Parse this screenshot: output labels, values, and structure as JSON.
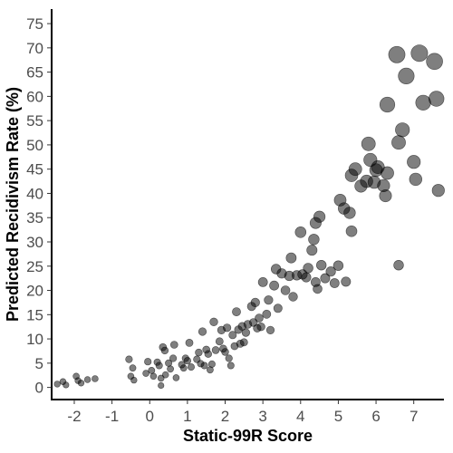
{
  "chart_data": {
    "type": "scatter",
    "title": "",
    "xlabel": "Static-99R Score",
    "ylabel": "Predicted Recidivism Rate (%)",
    "xlim": [
      -2.6,
      7.8
    ],
    "ylim": [
      -2.5,
      78
    ],
    "x_ticks": [
      -2,
      -1,
      0,
      1,
      2,
      3,
      4,
      5,
      6,
      7
    ],
    "x_tick_labels": [
      "-2",
      "-1",
      "0",
      "1",
      "2",
      "3",
      "4",
      "5",
      "6",
      "7"
    ],
    "y_ticks": [
      0,
      5,
      10,
      15,
      20,
      25,
      30,
      35,
      40,
      45,
      50,
      55,
      60,
      65,
      70,
      75
    ],
    "y_tick_labels": [
      "0",
      "5",
      "10",
      "15",
      "20",
      "25",
      "30",
      "35",
      "40",
      "45",
      "50",
      "55",
      "60",
      "65",
      "70",
      "75"
    ],
    "grid": false,
    "legend": "none",
    "point_color": "#000000",
    "point_opacity": 0.5,
    "size_encodes": "predicted rate (larger points at higher values)",
    "points": [
      {
        "x": -2.45,
        "y": 0.7
      },
      {
        "x": -2.3,
        "y": 1.2
      },
      {
        "x": -2.22,
        "y": 0.5
      },
      {
        "x": -1.95,
        "y": 2.3
      },
      {
        "x": -1.9,
        "y": 1.4
      },
      {
        "x": -1.82,
        "y": 0.9
      },
      {
        "x": -1.65,
        "y": 1.6
      },
      {
        "x": -1.45,
        "y": 1.8
      },
      {
        "x": -0.55,
        "y": 5.8
      },
      {
        "x": -0.5,
        "y": 2.3
      },
      {
        "x": -0.45,
        "y": 4.0
      },
      {
        "x": -0.42,
        "y": 1.5
      },
      {
        "x": -0.1,
        "y": 2.9
      },
      {
        "x": -0.05,
        "y": 5.3
      },
      {
        "x": 0.05,
        "y": 3.5
      },
      {
        "x": 0.1,
        "y": 2.3
      },
      {
        "x": 0.2,
        "y": 5.2
      },
      {
        "x": 0.25,
        "y": 4.5
      },
      {
        "x": 0.3,
        "y": 1.9
      },
      {
        "x": 0.3,
        "y": 0.4
      },
      {
        "x": 0.35,
        "y": 8.3
      },
      {
        "x": 0.4,
        "y": 7.6
      },
      {
        "x": 0.42,
        "y": 2.6
      },
      {
        "x": 0.5,
        "y": 5.0
      },
      {
        "x": 0.55,
        "y": 3.8
      },
      {
        "x": 0.62,
        "y": 6.0
      },
      {
        "x": 0.65,
        "y": 8.8
      },
      {
        "x": 0.7,
        "y": 2.0
      },
      {
        "x": 0.85,
        "y": 4.7
      },
      {
        "x": 0.9,
        "y": 4.0
      },
      {
        "x": 0.95,
        "y": 6.0
      },
      {
        "x": 1.0,
        "y": 5.5
      },
      {
        "x": 1.05,
        "y": 9.2
      },
      {
        "x": 1.1,
        "y": 4.2
      },
      {
        "x": 1.25,
        "y": 5.8
      },
      {
        "x": 1.3,
        "y": 7.2
      },
      {
        "x": 1.35,
        "y": 4.9
      },
      {
        "x": 1.4,
        "y": 11.5
      },
      {
        "x": 1.45,
        "y": 4.5
      },
      {
        "x": 1.5,
        "y": 7.8
      },
      {
        "x": 1.55,
        "y": 6.9
      },
      {
        "x": 1.6,
        "y": 3.6
      },
      {
        "x": 1.65,
        "y": 4.8
      },
      {
        "x": 1.7,
        "y": 13.5
      },
      {
        "x": 1.75,
        "y": 7.7
      },
      {
        "x": 1.85,
        "y": 9.5
      },
      {
        "x": 1.9,
        "y": 11.8
      },
      {
        "x": 1.95,
        "y": 8.0
      },
      {
        "x": 2.0,
        "y": 7.3
      },
      {
        "x": 2.05,
        "y": 12.3
      },
      {
        "x": 2.1,
        "y": 6.0
      },
      {
        "x": 2.15,
        "y": 4.5
      },
      {
        "x": 2.2,
        "y": 10.8
      },
      {
        "x": 2.25,
        "y": 8.5
      },
      {
        "x": 2.3,
        "y": 15.6
      },
      {
        "x": 2.35,
        "y": 11.9
      },
      {
        "x": 2.4,
        "y": 9.0
      },
      {
        "x": 2.45,
        "y": 12.6
      },
      {
        "x": 2.5,
        "y": 9.3
      },
      {
        "x": 2.55,
        "y": 11.3
      },
      {
        "x": 2.6,
        "y": 13.0
      },
      {
        "x": 2.7,
        "y": 16.7
      },
      {
        "x": 2.75,
        "y": 13.4
      },
      {
        "x": 2.8,
        "y": 17.5
      },
      {
        "x": 2.85,
        "y": 12.2
      },
      {
        "x": 2.9,
        "y": 14.3
      },
      {
        "x": 2.95,
        "y": 12.5
      },
      {
        "x": 3.0,
        "y": 21.7
      },
      {
        "x": 3.1,
        "y": 15.1
      },
      {
        "x": 3.15,
        "y": 18.0
      },
      {
        "x": 3.2,
        "y": 11.8
      },
      {
        "x": 3.3,
        "y": 21.0
      },
      {
        "x": 3.35,
        "y": 24.4
      },
      {
        "x": 3.4,
        "y": 16.3
      },
      {
        "x": 3.5,
        "y": 23.5
      },
      {
        "x": 3.6,
        "y": 20.0
      },
      {
        "x": 3.7,
        "y": 23.0
      },
      {
        "x": 3.75,
        "y": 26.7
      },
      {
        "x": 3.8,
        "y": 18.7
      },
      {
        "x": 3.9,
        "y": 23.1
      },
      {
        "x": 4.0,
        "y": 32.0
      },
      {
        "x": 4.05,
        "y": 23.3
      },
      {
        "x": 4.15,
        "y": 22.7
      },
      {
        "x": 4.2,
        "y": 24.6
      },
      {
        "x": 4.3,
        "y": 28.3
      },
      {
        "x": 4.35,
        "y": 30.5
      },
      {
        "x": 4.4,
        "y": 21.7
      },
      {
        "x": 4.4,
        "y": 33.9
      },
      {
        "x": 4.45,
        "y": 20.3
      },
      {
        "x": 4.5,
        "y": 35.2
      },
      {
        "x": 4.55,
        "y": 25.2
      },
      {
        "x": 4.65,
        "y": 22.5
      },
      {
        "x": 4.8,
        "y": 23.9
      },
      {
        "x": 4.9,
        "y": 21.5
      },
      {
        "x": 5.0,
        "y": 25.1
      },
      {
        "x": 5.05,
        "y": 38.6
      },
      {
        "x": 5.15,
        "y": 36.9
      },
      {
        "x": 5.2,
        "y": 21.8
      },
      {
        "x": 5.3,
        "y": 36.0
      },
      {
        "x": 5.35,
        "y": 32.2
      },
      {
        "x": 5.35,
        "y": 43.7
      },
      {
        "x": 5.45,
        "y": 45.0
      },
      {
        "x": 5.6,
        "y": 41.5
      },
      {
        "x": 5.75,
        "y": 42.5
      },
      {
        "x": 5.8,
        "y": 50.2
      },
      {
        "x": 5.85,
        "y": 46.9
      },
      {
        "x": 5.95,
        "y": 42.3
      },
      {
        "x": 6.0,
        "y": 44.8
      },
      {
        "x": 6.05,
        "y": 45.4
      },
      {
        "x": 6.2,
        "y": 41.6
      },
      {
        "x": 6.25,
        "y": 39.5
      },
      {
        "x": 6.3,
        "y": 58.3
      },
      {
        "x": 6.3,
        "y": 44.2
      },
      {
        "x": 6.55,
        "y": 68.6
      },
      {
        "x": 6.6,
        "y": 50.5
      },
      {
        "x": 6.6,
        "y": 25.2
      },
      {
        "x": 6.7,
        "y": 53.1
      },
      {
        "x": 6.8,
        "y": 64.2
      },
      {
        "x": 7.0,
        "y": 46.5
      },
      {
        "x": 7.05,
        "y": 42.9
      },
      {
        "x": 7.15,
        "y": 68.9
      },
      {
        "x": 7.25,
        "y": 58.7
      },
      {
        "x": 7.55,
        "y": 67.2
      },
      {
        "x": 7.6,
        "y": 59.5
      },
      {
        "x": 7.65,
        "y": 40.6
      }
    ]
  }
}
